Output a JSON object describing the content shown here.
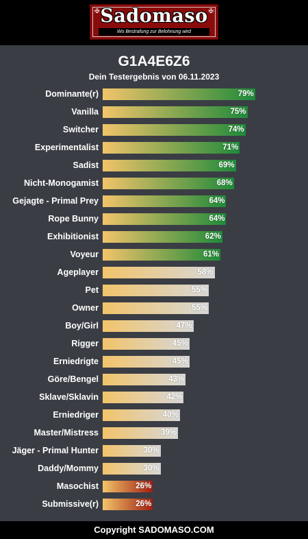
{
  "header": {
    "logo_text": "Sadomaso",
    "tagline": "Wo Bestrafung zur Belohnung wird",
    "corner_glyph": "✠"
  },
  "title": "G1A4E6Z6",
  "subtitle": "Dein Testergebnis von 06.11.2023",
  "footer": "Copyright SADOMASO.COM",
  "colors": {
    "background": "#3a3d44",
    "bar_start": "#f2c46a",
    "high_end": "#1f8a3a",
    "mid_end": "#d7d7d7",
    "low_end": "#a01e12"
  },
  "chart_data": {
    "type": "bar",
    "orientation": "horizontal",
    "xlim": [
      0,
      100
    ],
    "categories": [
      "Dominante(r)",
      "Vanilla",
      "Switcher",
      "Experimentalist",
      "Sadist",
      "Nicht-Monogamist",
      "Gejagte - Primal Prey",
      "Rope Bunny",
      "Exhibitionist",
      "Voyeur",
      "Ageplayer",
      "Pet",
      "Owner",
      "Boy/Girl",
      "Rigger",
      "Erniedrigte",
      "Göre/Bengel",
      "Sklave/Sklavin",
      "Erniedriger",
      "Master/Mistress",
      "Jäger - Primal Hunter",
      "Daddy/Mommy",
      "Masochist",
      "Submissive(r)"
    ],
    "values": [
      79,
      75,
      74,
      71,
      69,
      68,
      64,
      64,
      62,
      61,
      58,
      55,
      55,
      47,
      45,
      45,
      43,
      42,
      40,
      39,
      30,
      30,
      26,
      26
    ],
    "value_labels": [
      "79%",
      "75%",
      "74%",
      "71%",
      "69%",
      "68%",
      "64%",
      "64%",
      "62%",
      "61%",
      "58%",
      "55%",
      "55%",
      "47%",
      "45%",
      "45%",
      "43%",
      "42%",
      "40%",
      "39%",
      "30%",
      "30%",
      "26%",
      "26%"
    ],
    "tiers": [
      "high",
      "high",
      "high",
      "high",
      "high",
      "high",
      "high",
      "high",
      "high",
      "high",
      "mid",
      "mid",
      "mid",
      "mid",
      "mid",
      "mid",
      "mid",
      "mid",
      "mid",
      "mid",
      "mid",
      "mid",
      "low",
      "low"
    ]
  }
}
